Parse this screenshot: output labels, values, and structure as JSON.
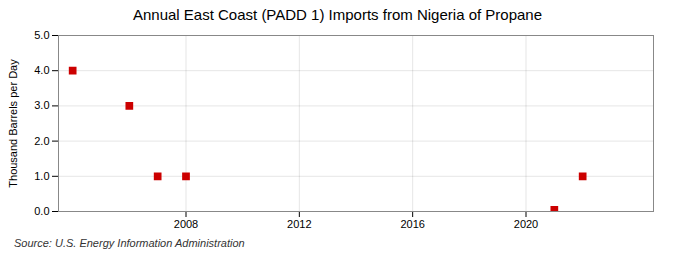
{
  "chart_data": {
    "type": "scatter",
    "title": "Annual East Coast (PADD 1) Imports from Nigeria of Propane",
    "y_label": "Thousand Barrels per Day",
    "source": "Source: U.S. Energy Information Administration",
    "x": [
      2004,
      2006,
      2007,
      2008,
      2021,
      2022
    ],
    "values": [
      4.0,
      3.0,
      1.0,
      1.0,
      0.046,
      1.0
    ],
    "color": "#cc0000",
    "marker": "square",
    "xlim": [
      2003.5,
      2024.5
    ],
    "xticks": [
      2008,
      2012,
      2016,
      2020
    ],
    "ylim": [
      0.0,
      5.0
    ],
    "yticks": [
      {
        "value": 0.0,
        "label": "0.0"
      },
      {
        "value": 1.0,
        "label": "1.0"
      },
      {
        "value": 2.0,
        "label": "2.0"
      },
      {
        "value": 3.0,
        "label": "3.0"
      },
      {
        "value": 4.0,
        "label": "4.0"
      },
      {
        "value": 5.0,
        "label": "5.0"
      }
    ],
    "grid": true
  }
}
